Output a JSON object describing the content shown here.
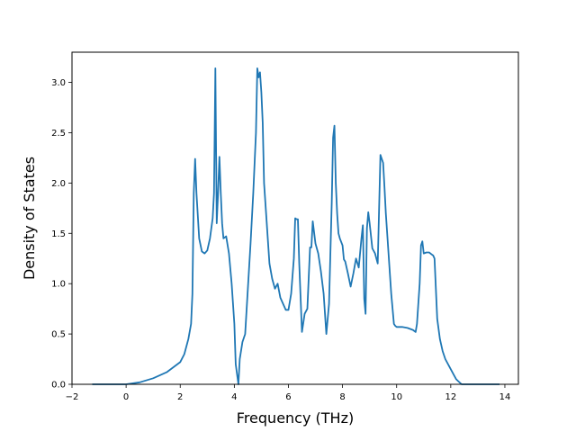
{
  "chart_data": {
    "type": "line",
    "title": "",
    "xlabel": "Frequency (THz)",
    "ylabel": "Density of States",
    "xlim": [
      -2,
      14.5
    ],
    "ylim": [
      0,
      3.3
    ],
    "grid": false,
    "legend": "none",
    "line_color": "#1f77b4",
    "x_ticks": [
      -2,
      0,
      2,
      4,
      6,
      8,
      10,
      12,
      14
    ],
    "x_tick_labels": [
      "−2",
      "0",
      "2",
      "4",
      "6",
      "8",
      "10",
      "12",
      "14"
    ],
    "y_ticks": [
      0.0,
      0.5,
      1.0,
      1.5,
      2.0,
      2.5,
      3.0
    ],
    "y_tick_labels": [
      "0.0",
      "0.5",
      "1.0",
      "1.5",
      "2.0",
      "2.5",
      "3.0"
    ],
    "series": [
      {
        "x": [
          -1.25,
          0.0,
          0.5,
          1.0,
          1.5,
          1.8,
          2.0,
          2.15,
          2.3,
          2.4,
          2.45,
          2.5,
          2.55,
          2.6,
          2.7,
          2.8,
          2.9,
          3.0,
          3.1,
          3.2,
          3.25,
          3.3,
          3.35,
          3.4,
          3.45,
          3.5,
          3.55,
          3.6,
          3.7,
          3.8,
          3.9,
          4.0,
          4.05,
          4.15,
          4.2,
          4.3,
          4.4,
          4.5,
          4.6,
          4.7,
          4.8,
          4.85,
          4.9,
          4.95,
          5.0,
          5.05,
          5.1,
          5.2,
          5.3,
          5.4,
          5.5,
          5.6,
          5.7,
          5.8,
          5.9,
          6.0,
          6.1,
          6.2,
          6.25,
          6.3,
          6.35,
          6.4,
          6.5,
          6.6,
          6.7,
          6.8,
          6.85,
          6.9,
          7.0,
          7.1,
          7.2,
          7.3,
          7.4,
          7.5,
          7.6,
          7.65,
          7.7,
          7.75,
          7.8,
          7.85,
          7.9,
          8.0,
          8.05,
          8.1,
          8.2,
          8.3,
          8.4,
          8.5,
          8.6,
          8.7,
          8.75,
          8.8,
          8.85,
          8.9,
          8.95,
          9.0,
          9.1,
          9.2,
          9.3,
          9.4,
          9.5,
          9.55,
          9.6,
          9.7,
          9.8,
          9.9,
          9.95,
          10.0,
          10.2,
          10.4,
          10.5,
          10.6,
          10.7,
          10.75,
          10.8,
          10.85,
          10.9,
          10.95,
          11.0,
          11.1,
          11.2,
          11.3,
          11.35,
          11.4,
          11.5,
          11.6,
          11.7,
          11.8,
          12.0,
          12.2,
          12.4,
          12.5,
          12.6,
          13.0,
          13.8
        ],
        "y": [
          0.0,
          0.0,
          0.02,
          0.06,
          0.12,
          0.18,
          0.22,
          0.3,
          0.45,
          0.6,
          0.9,
          1.9,
          2.24,
          1.9,
          1.45,
          1.32,
          1.3,
          1.33,
          1.45,
          1.65,
          1.9,
          3.14,
          1.6,
          1.9,
          2.26,
          1.9,
          1.6,
          1.45,
          1.47,
          1.3,
          1.0,
          0.6,
          0.2,
          0.0,
          0.25,
          0.42,
          0.5,
          0.95,
          1.4,
          1.9,
          2.5,
          3.14,
          3.05,
          3.1,
          2.9,
          2.6,
          2.0,
          1.6,
          1.2,
          1.05,
          0.95,
          1.0,
          0.86,
          0.8,
          0.74,
          0.74,
          0.9,
          1.25,
          1.65,
          1.64,
          1.64,
          1.2,
          0.52,
          0.7,
          0.75,
          1.36,
          1.36,
          1.62,
          1.4,
          1.3,
          1.12,
          0.9,
          0.5,
          0.8,
          1.8,
          2.45,
          2.57,
          2.0,
          1.7,
          1.5,
          1.45,
          1.38,
          1.24,
          1.22,
          1.1,
          0.97,
          1.1,
          1.25,
          1.16,
          1.45,
          1.58,
          0.85,
          0.7,
          1.55,
          1.71,
          1.6,
          1.35,
          1.3,
          1.2,
          2.28,
          2.2,
          1.96,
          1.7,
          1.3,
          0.9,
          0.6,
          0.58,
          0.57,
          0.57,
          0.56,
          0.55,
          0.54,
          0.52,
          0.6,
          0.8,
          1.0,
          1.38,
          1.42,
          1.3,
          1.31,
          1.31,
          1.29,
          1.28,
          1.25,
          0.65,
          0.45,
          0.33,
          0.25,
          0.15,
          0.05,
          0.0,
          0.0,
          0.0,
          0.0,
          0.0
        ]
      }
    ]
  }
}
